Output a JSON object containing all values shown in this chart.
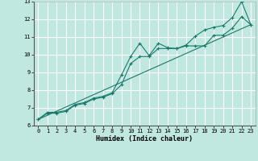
{
  "xlabel": "Humidex (Indice chaleur)",
  "xlim": [
    -0.5,
    23.5
  ],
  "ylim": [
    6,
    13
  ],
  "yticks": [
    6,
    7,
    8,
    9,
    10,
    11,
    12,
    13
  ],
  "xticks": [
    0,
    1,
    2,
    3,
    4,
    5,
    6,
    7,
    8,
    9,
    10,
    11,
    12,
    13,
    14,
    15,
    16,
    17,
    18,
    19,
    20,
    21,
    22,
    23
  ],
  "bg_color": "#c0e8e0",
  "grid_color": "#ffffff",
  "line_color": "#1a7a6a",
  "line1_x": [
    0,
    1,
    2,
    3,
    4,
    5,
    6,
    7,
    8,
    9,
    10,
    11,
    12,
    13,
    14,
    15,
    16,
    17,
    18,
    19,
    20,
    21,
    22,
    23
  ],
  "line1_y": [
    6.35,
    6.75,
    6.75,
    6.85,
    7.2,
    7.3,
    7.55,
    7.65,
    7.85,
    8.85,
    9.9,
    10.65,
    9.95,
    10.65,
    10.4,
    10.35,
    10.55,
    11.05,
    11.4,
    11.55,
    11.65,
    12.1,
    13.0,
    11.7
  ],
  "line2_x": [
    0,
    1,
    2,
    3,
    4,
    5,
    6,
    7,
    8,
    9,
    10,
    11,
    12,
    13,
    14,
    15,
    16,
    17,
    18,
    19,
    20,
    21,
    22,
    23
  ],
  "line2_y": [
    6.35,
    6.7,
    6.7,
    6.8,
    7.15,
    7.25,
    7.5,
    7.6,
    7.8,
    8.3,
    9.5,
    9.9,
    9.9,
    10.35,
    10.35,
    10.35,
    10.5,
    10.5,
    10.5,
    11.1,
    11.1,
    11.5,
    12.15,
    11.7
  ],
  "line3_x": [
    0,
    23
  ],
  "line3_y": [
    6.35,
    11.7
  ]
}
